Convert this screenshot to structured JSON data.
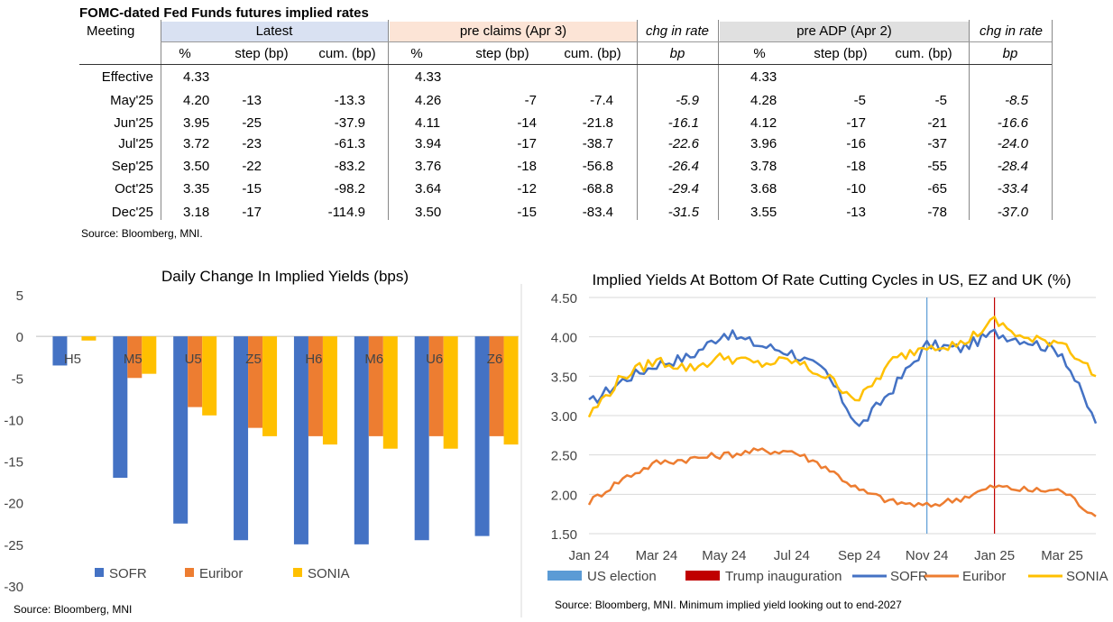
{
  "table": {
    "title": "FOMC-dated Fed Funds futures implied rates",
    "meeting_header": "Meeting",
    "groups": [
      {
        "name": "Latest",
        "color": "#D9E1F2"
      },
      {
        "name": "pre claims (Apr 3)",
        "color": "#FCE4D6"
      },
      {
        "name": "chg in rate",
        "color": "#FFFFFF"
      },
      {
        "name": "pre ADP (Apr 2)",
        "color": "#E0E0E0"
      },
      {
        "name": "chg in rate",
        "color": "#FFFFFF"
      }
    ],
    "subheaders": [
      "%",
      "step (bp)",
      "cum. (bp)",
      "%",
      "step (bp)",
      "cum. (bp)",
      "bp",
      "%",
      "step (bp)",
      "cum. (bp)",
      "bp"
    ],
    "rows": [
      {
        "meeting": "Effective",
        "cells": [
          "4.33",
          "",
          "",
          "4.33",
          "",
          "",
          "",
          "4.33",
          "",
          "",
          ""
        ]
      },
      {
        "meeting": "May'25",
        "cells": [
          "4.20",
          "-13",
          "-13.3",
          "4.26",
          "-7",
          "-7.4",
          "-5.9",
          "4.28",
          "-5",
          "-5",
          "-8.5"
        ]
      },
      {
        "meeting": "Jun'25",
        "cells": [
          "3.95",
          "-25",
          "-37.9",
          "4.11",
          "-14",
          "-21.8",
          "-16.1",
          "4.12",
          "-17",
          "-21",
          "-16.6"
        ]
      },
      {
        "meeting": "Jul'25",
        "cells": [
          "3.72",
          "-23",
          "-61.3",
          "3.94",
          "-17",
          "-38.7",
          "-22.6",
          "3.96",
          "-16",
          "-37",
          "-24.0"
        ]
      },
      {
        "meeting": "Sep'25",
        "cells": [
          "3.50",
          "-22",
          "-83.2",
          "3.76",
          "-18",
          "-56.8",
          "-26.4",
          "3.78",
          "-18",
          "-55",
          "-28.4"
        ]
      },
      {
        "meeting": "Oct'25",
        "cells": [
          "3.35",
          "-15",
          "-98.2",
          "3.64",
          "-12",
          "-68.8",
          "-29.4",
          "3.68",
          "-10",
          "-65",
          "-33.4"
        ]
      },
      {
        "meeting": "Dec'25",
        "cells": [
          "3.18",
          "-17",
          "-114.9",
          "3.50",
          "-15",
          "-83.4",
          "-31.5",
          "3.55",
          "-13",
          "-78",
          "-37.0"
        ]
      }
    ],
    "source": "Source: Bloomberg, MNI."
  },
  "chart_data": [
    {
      "type": "bar",
      "title": "Daily Change In Implied Yields (bps)",
      "categories": [
        "H5",
        "M5",
        "U5",
        "Z5",
        "H6",
        "M6",
        "U6",
        "Z6"
      ],
      "series": [
        {
          "name": "SOFR",
          "color": "#4472C4",
          "values": [
            -3.5,
            -17,
            -22.5,
            -24.5,
            -25,
            -25,
            -24.5,
            -24
          ]
        },
        {
          "name": "Euribor",
          "color": "#ED7D31",
          "values": [
            null,
            -5,
            -8.5,
            -11,
            -12,
            -12,
            -12,
            -12
          ]
        },
        {
          "name": "SONIA",
          "color": "#FFC000",
          "values": [
            -0.5,
            -4.5,
            -9.5,
            -12,
            -13,
            -13.5,
            -13.5,
            -13
          ]
        }
      ],
      "ylim": [
        -30,
        5
      ],
      "yticks": [
        5,
        0,
        -5,
        -10,
        -15,
        -20,
        -25,
        -30
      ],
      "xlabel": "",
      "ylabel": "",
      "legend": "bottom",
      "source": "Source: Bloomberg, MNI"
    },
    {
      "type": "line",
      "title": "Implied Yields At Bottom Of Rate Cutting Cycles in US, EZ and UK (%)",
      "x": [
        "Jan 24",
        "Feb 24",
        "Mar 24",
        "Apr 24",
        "May 24",
        "Jun 24",
        "Jul 24",
        "Aug 24",
        "Sep 24",
        "Oct 24",
        "Nov 24",
        "Dec 24",
        "Jan 25",
        "Feb 25",
        "Mar 25",
        "Apr 25"
      ],
      "xticks": [
        "Jan 24",
        "Mar 24",
        "May 24",
        "Jul 24",
        "Sep 24",
        "Nov 24",
        "Jan 25",
        "Mar 25"
      ],
      "series": [
        {
          "name": "SOFR",
          "color": "#4472C4",
          "values": [
            3.15,
            3.45,
            3.65,
            3.75,
            4.05,
            3.9,
            3.8,
            3.55,
            2.85,
            3.35,
            3.9,
            3.85,
            4.05,
            3.95,
            3.8,
            2.9
          ]
        },
        {
          "name": "Euribor",
          "color": "#ED7D31",
          "values": [
            1.9,
            2.2,
            2.4,
            2.45,
            2.5,
            2.55,
            2.55,
            2.35,
            2.05,
            1.9,
            1.85,
            1.95,
            2.1,
            2.05,
            2.05,
            1.72
          ]
        },
        {
          "name": "SONIA",
          "color": "#FFC000",
          "values": [
            3.0,
            3.5,
            3.7,
            3.6,
            3.75,
            3.65,
            3.7,
            3.5,
            3.2,
            3.7,
            3.9,
            3.9,
            4.2,
            3.95,
            3.95,
            3.5
          ]
        }
      ],
      "events": [
        {
          "name": "US election",
          "color": "#5B9BD5",
          "x": "Nov 24"
        },
        {
          "name": "Trump inauguration",
          "color": "#C00000",
          "x": "Jan 25"
        }
      ],
      "ylim": [
        1.5,
        4.5
      ],
      "yticks": [
        "4.50",
        "4.00",
        "3.50",
        "3.00",
        "2.50",
        "2.00",
        "1.50"
      ],
      "xlabel": "",
      "ylabel": "",
      "legend": "bottom",
      "source": "Source: Bloomberg, MNI. Minimum implied yield looking out to end-2027"
    }
  ]
}
